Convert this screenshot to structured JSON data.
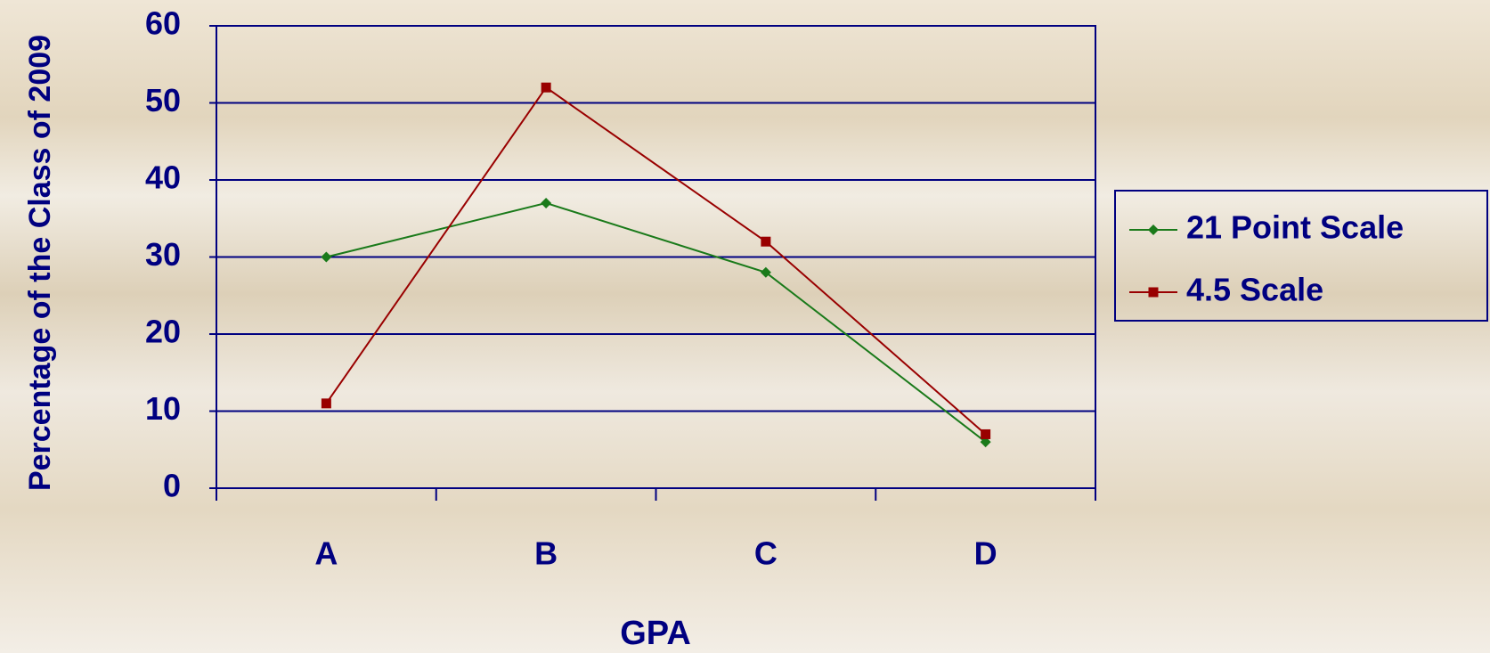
{
  "chart_data": {
    "type": "line",
    "x_label": "GPA",
    "y_label": "Percentage of the Class of 2009",
    "categories": [
      "A",
      "B",
      "C",
      "D"
    ],
    "series": [
      {
        "name": "21 Point Scale",
        "color": "#1a7a1a",
        "marker": "diamond",
        "values": [
          30,
          37,
          28,
          6
        ]
      },
      {
        "name": "4.5 Scale",
        "color": "#990000",
        "marker": "square",
        "values": [
          11,
          52,
          32,
          7
        ]
      }
    ],
    "ylim": [
      0,
      60
    ],
    "yticks": [
      0,
      10,
      20,
      30,
      40,
      50,
      60
    ],
    "grid": true,
    "legend": "right"
  }
}
